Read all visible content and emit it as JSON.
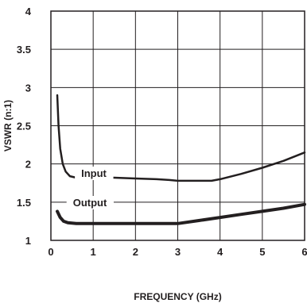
{
  "chart_data": {
    "type": "line",
    "xlabel": "FREQUENCY (GHz)",
    "ylabel": "VSWR (n:1)",
    "xlim": [
      0,
      6
    ],
    "ylim": [
      1,
      4
    ],
    "x_ticks": [
      0,
      1,
      2,
      3,
      4,
      5,
      6
    ],
    "x_tick_labels": [
      "0",
      "1",
      "2",
      "3",
      "4",
      "5",
      "6"
    ],
    "y_ticks": [
      1,
      1.5,
      2,
      2.5,
      3,
      3.5,
      4
    ],
    "y_tick_labels": [
      "1",
      "1.5",
      "2",
      "2.5",
      "3",
      "3.5",
      "4"
    ],
    "grid": true,
    "series": [
      {
        "name": "Input",
        "color": "#231f20",
        "x": [
          0.15,
          0.18,
          0.22,
          0.28,
          0.35,
          0.45,
          0.6,
          1.0,
          1.5,
          2.0,
          2.5,
          2.8,
          3.0,
          3.5,
          3.8,
          4.0,
          4.5,
          5.0,
          5.5,
          6.0
        ],
        "y": [
          2.9,
          2.5,
          2.2,
          2.0,
          1.9,
          1.84,
          1.82,
          1.82,
          1.82,
          1.81,
          1.8,
          1.79,
          1.78,
          1.78,
          1.78,
          1.8,
          1.87,
          1.95,
          2.04,
          2.15
        ]
      },
      {
        "name": "Output",
        "color": "#231f20",
        "x": [
          0.15,
          0.22,
          0.3,
          0.4,
          0.6,
          1.0,
          1.5,
          2.0,
          2.5,
          3.0,
          3.5,
          4.0,
          4.5,
          5.0,
          5.5,
          6.0
        ],
        "y": [
          1.38,
          1.3,
          1.25,
          1.23,
          1.22,
          1.22,
          1.22,
          1.22,
          1.22,
          1.22,
          1.26,
          1.3,
          1.34,
          1.38,
          1.42,
          1.47
        ]
      }
    ]
  }
}
